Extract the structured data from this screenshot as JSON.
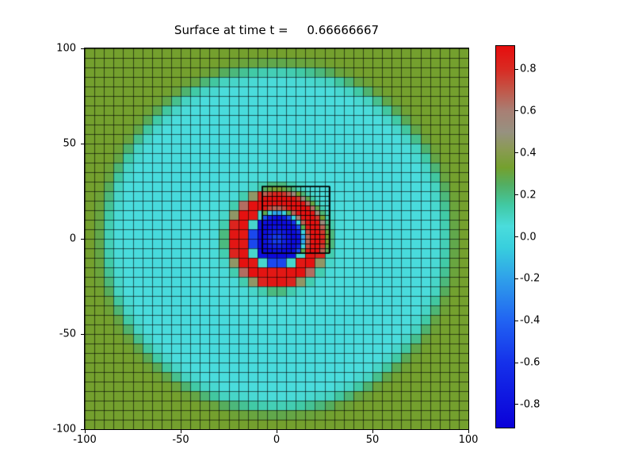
{
  "title": "Surface at time t =     0.66666667",
  "axes": {
    "xlim": [
      -100,
      100
    ],
    "ylim": [
      -100,
      100
    ],
    "x_ticks": [
      -100,
      -50,
      0,
      50,
      100
    ],
    "y_ticks": [
      -100,
      -50,
      0,
      50,
      100
    ]
  },
  "chart_data": {
    "type": "heatmap",
    "title": "Surface at time t =     0.66666667",
    "xlim": [
      -100,
      100
    ],
    "ylim": [
      -100,
      100
    ],
    "x_ticks": [
      -100,
      -50,
      0,
      50,
      100
    ],
    "y_ticks": [
      -100,
      -50,
      0,
      50,
      100
    ],
    "grid": {
      "nx": 40,
      "ny": 40,
      "cell_size": 5,
      "line_color": "rgba(0,0,0,0.6)"
    },
    "field": {
      "description": "radially symmetric surface u(r) sampled at cell centers; blue core, red ring, cyan plateau, olive far field",
      "profile_r_v": [
        [
          0,
          -0.45
        ],
        [
          4,
          -0.7
        ],
        [
          8,
          -0.86
        ],
        [
          11.5,
          -0.8
        ],
        [
          13,
          -0.45
        ],
        [
          14.5,
          0.05
        ],
        [
          16,
          0.62
        ],
        [
          17.5,
          0.87
        ],
        [
          21,
          0.91
        ],
        [
          23.5,
          0.86
        ],
        [
          25,
          0.6
        ],
        [
          26.5,
          0.3
        ],
        [
          28.5,
          0.13
        ],
        [
          31,
          0.06
        ],
        [
          55,
          0.03
        ],
        [
          82,
          0.05
        ],
        [
          87,
          0.1
        ],
        [
          90,
          0.2
        ],
        [
          93,
          0.3
        ],
        [
          97,
          0.33
        ],
        [
          145,
          0.33
        ]
      ]
    },
    "refinement_patch": {
      "x_min": -7.5,
      "x_max": 27.5,
      "y_min": -7.5,
      "y_max": 27.5,
      "cell_size": 2.5,
      "line_color": "rgba(0,0,0,0.85)",
      "border_color": "#000000"
    },
    "colormap_stops": [
      [
        -0.91,
        "#0a00d8"
      ],
      [
        -0.6,
        "#1531ea"
      ],
      [
        -0.4,
        "#2163f2"
      ],
      [
        -0.2,
        "#2fa0ea"
      ],
      [
        -0.05,
        "#38cfdd"
      ],
      [
        0.05,
        "#4adcdc"
      ],
      [
        0.15,
        "#41c9a4"
      ],
      [
        0.25,
        "#53ae62"
      ],
      [
        0.33,
        "#74a02e"
      ],
      [
        0.42,
        "#8b9a55"
      ],
      [
        0.5,
        "#979180"
      ],
      [
        0.6,
        "#a87f74"
      ],
      [
        0.7,
        "#c25648"
      ],
      [
        0.8,
        "#d92a22"
      ],
      [
        0.91,
        "#e60e0e"
      ]
    ],
    "colorbar": {
      "vmin": -0.91,
      "vmax": 0.91,
      "ticks": [
        0.8,
        0.6,
        0.4,
        0.2,
        0.0,
        -0.2,
        -0.4,
        -0.6,
        -0.8
      ]
    }
  }
}
